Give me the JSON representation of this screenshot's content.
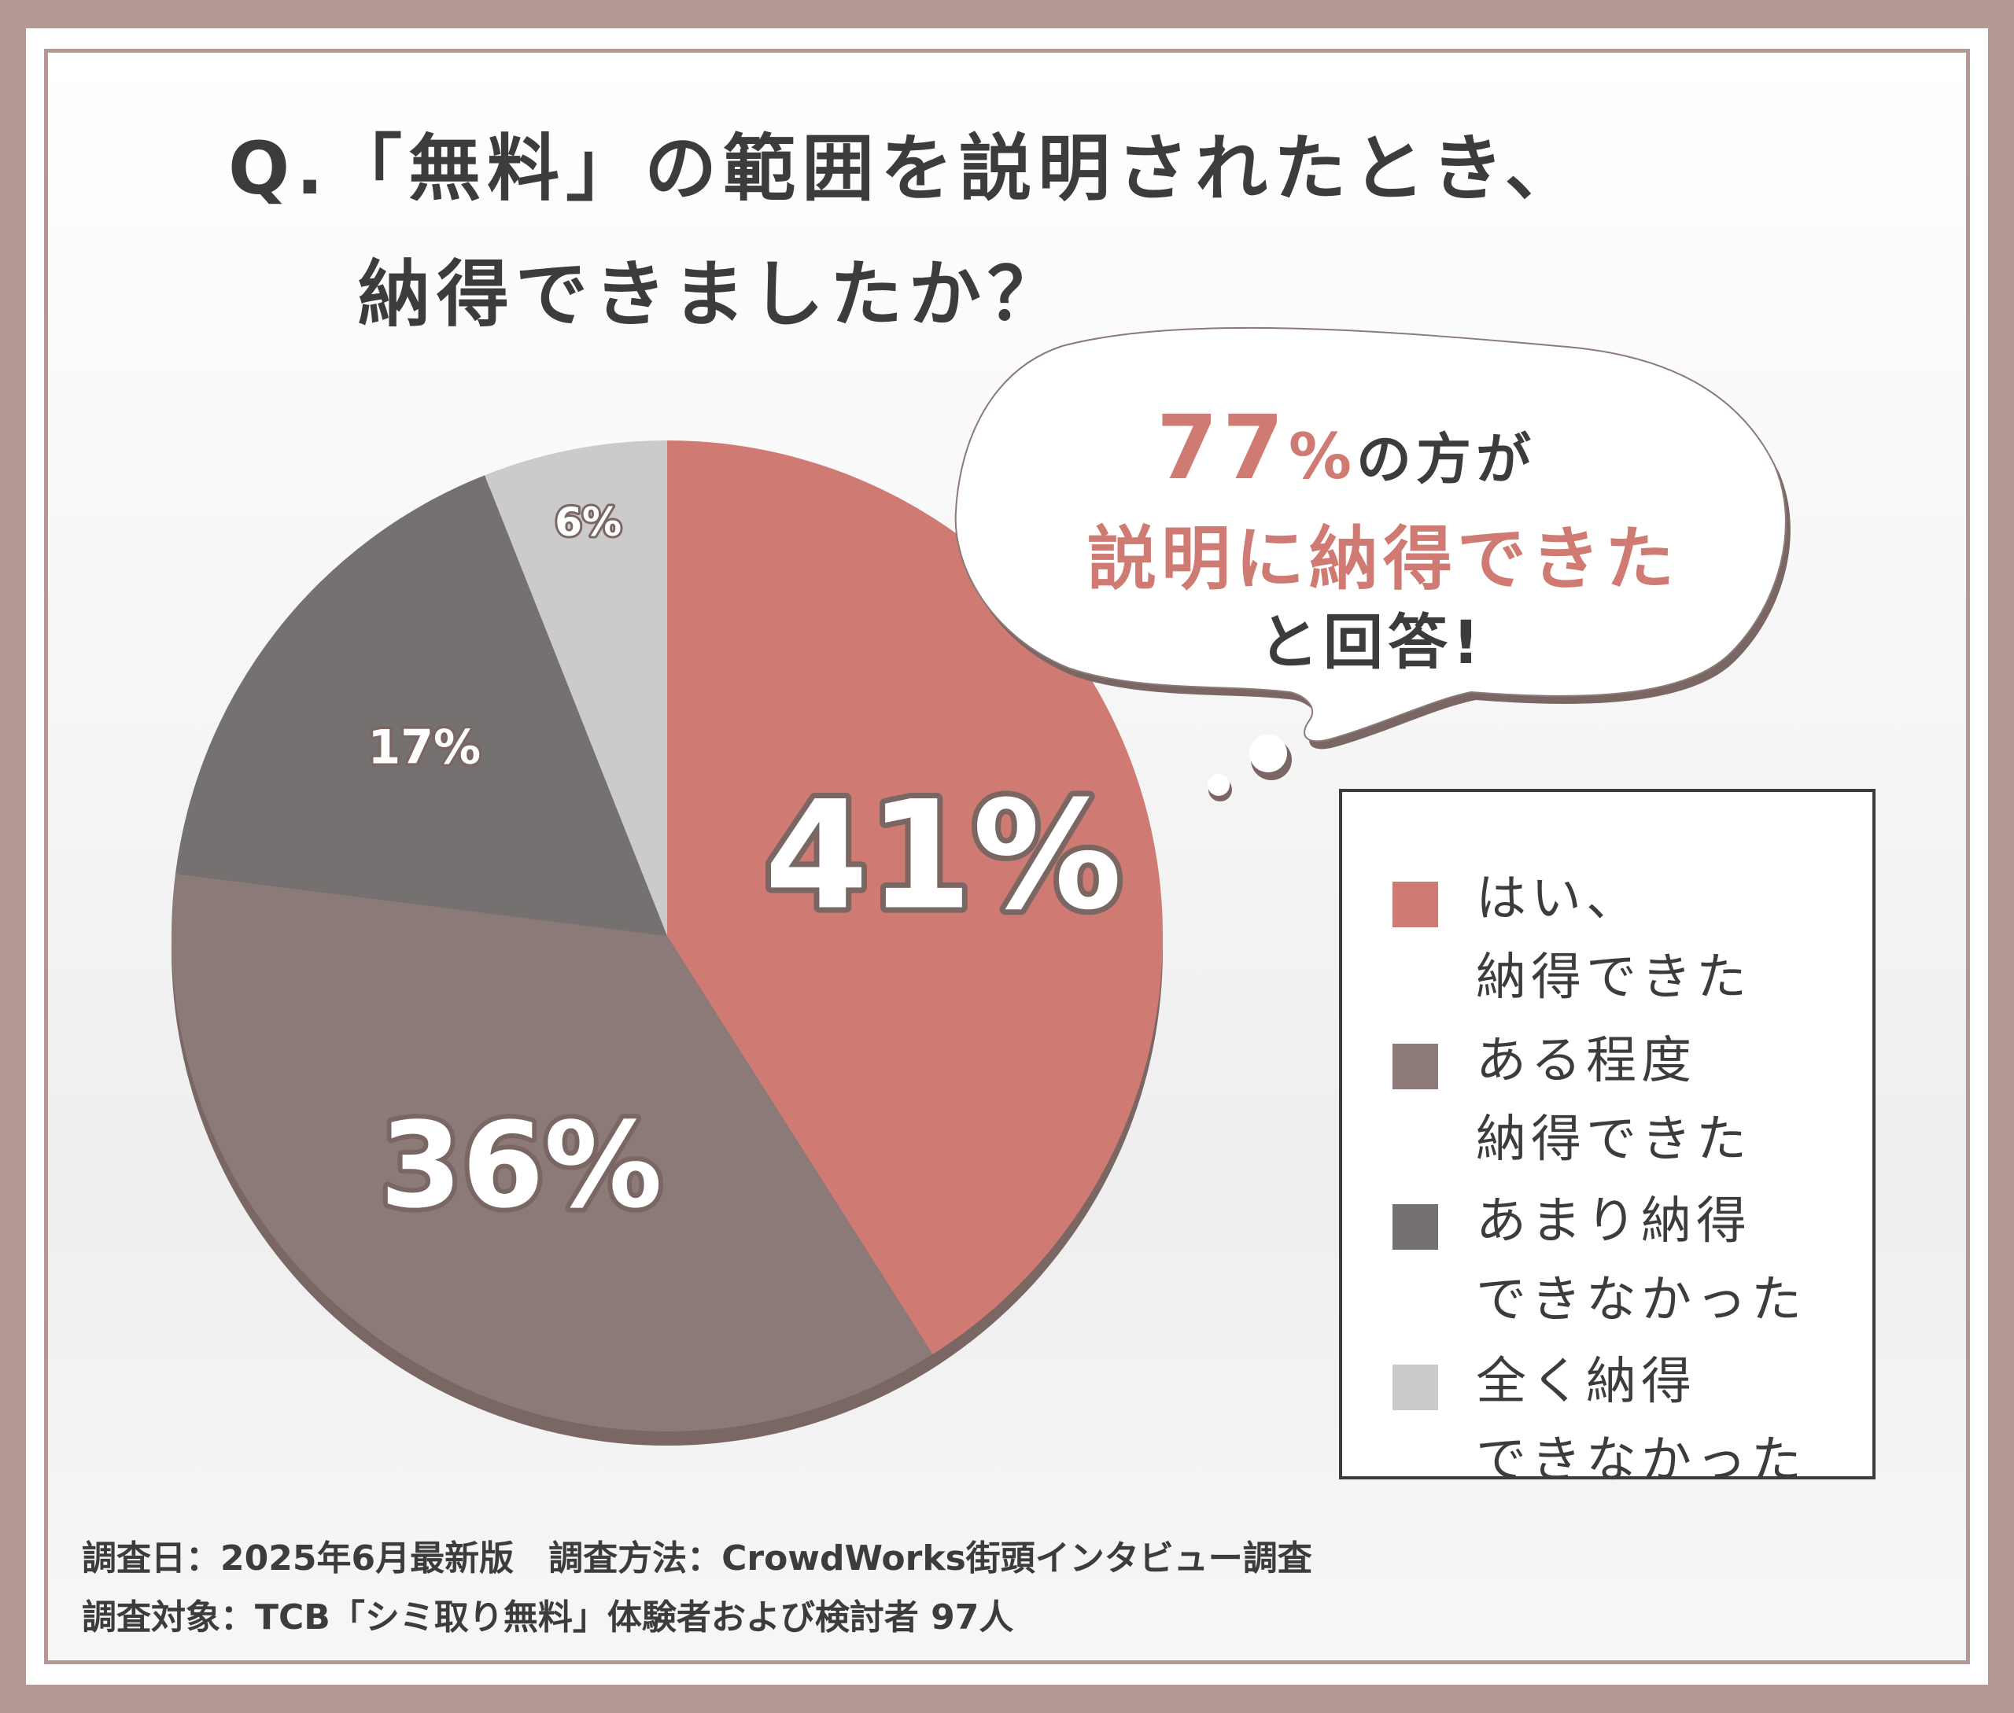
{
  "title": {
    "line1": "Q.「無料」の範囲を説明されたとき、",
    "line2": "納得できましたか？"
  },
  "bubble": {
    "big_number": "77",
    "percent_sign": "%",
    "line1_rest": "の方が",
    "line2": "説明に納得できた",
    "line3": "と回答!"
  },
  "chart_data": {
    "type": "pie",
    "title": "Q.「無料」の範囲を説明されたとき、納得できましたか？",
    "slices": [
      {
        "label": "はい、納得できた",
        "value": 41,
        "display": "41%",
        "color": "#cf7a72"
      },
      {
        "label": "ある程度納得できた",
        "value": 36,
        "display": "36%",
        "color": "#8b7a77"
      },
      {
        "label": "あまり納得できなかった",
        "value": 17,
        "display": "17%",
        "color": "#757170"
      },
      {
        "label": "全く納得できなかった",
        "value": 6,
        "display": "6%",
        "color": "#cbcbcb"
      }
    ],
    "legend_position": "right"
  },
  "legend": {
    "items": [
      {
        "line1": "はい、",
        "line2": "納得できた"
      },
      {
        "line1": "ある程度",
        "line2": "納得できた"
      },
      {
        "line1": "あまり納得",
        "line2": "できなかった"
      },
      {
        "line1": "全く納得",
        "line2": "できなかった"
      }
    ]
  },
  "notes": {
    "line1": "調査日：2025年6月最新版　調査方法：CrowdWorks街頭インタビュー調査",
    "line2": "調査対象：TCB「シミ取り無料」体験者および検討者 97人"
  },
  "colors": {
    "frame": "#b39993",
    "accent": "#cf7a72",
    "text": "#3c3c3c",
    "pie_shadow": "#7a6763"
  }
}
